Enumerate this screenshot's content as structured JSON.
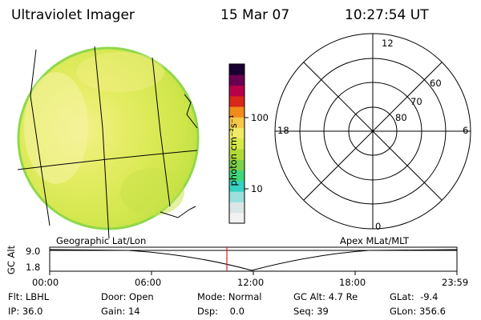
{
  "header": {
    "instrument": "Ultraviolet Imager",
    "date": "15 Mar 07",
    "time": "10:27:54 UT"
  },
  "colorbar": {
    "unit_label": "photon cm⁻²s⁻¹",
    "tick_100": "100",
    "tick_10": "10",
    "colors": [
      "#f2f2f2",
      "#dbe6e6",
      "#9be0dc",
      "#39d1c2",
      "#41d679",
      "#7ed24a",
      "#b2d93a",
      "#d6e84a",
      "#f0ea66",
      "#f6c84a",
      "#f08a1a",
      "#d9261a",
      "#b8004a",
      "#6a0052",
      "#1a0030"
    ]
  },
  "polar": {
    "lat_labels": [
      "80",
      "70",
      "60"
    ],
    "mlt_labels": {
      "top": "12",
      "left": "18",
      "right": "6",
      "bottom": "0"
    }
  },
  "map": {
    "left_label": "Geographic Lat/Lon",
    "right_label": "Apex MLat/MLT"
  },
  "timeline": {
    "y_label": "GC Alt",
    "y_ticks": [
      "9.0",
      "1.8"
    ],
    "x_ticks": [
      "00:00",
      "06:00",
      "12:00",
      "18:00",
      "23:59"
    ],
    "marker_color": "#e0201a"
  },
  "status": {
    "row1": [
      {
        "label": "Flt:",
        "value": "LBHL"
      },
      {
        "label": "Door:",
        "value": "Open"
      },
      {
        "label": "Mode:",
        "value": "Normal"
      },
      {
        "label": "GC Alt:",
        "value": "4.7 Re"
      },
      {
        "label": "GLat:",
        "value": "-9.4"
      }
    ],
    "row2": [
      {
        "label": "IP:",
        "value": "36.0"
      },
      {
        "label": "Gain:",
        "value": "14"
      },
      {
        "label": "Dsp:",
        "value": "0.0"
      },
      {
        "label": "Seq:",
        "value": "39"
      },
      {
        "label": "GLon:",
        "value": "356.6"
      }
    ]
  }
}
